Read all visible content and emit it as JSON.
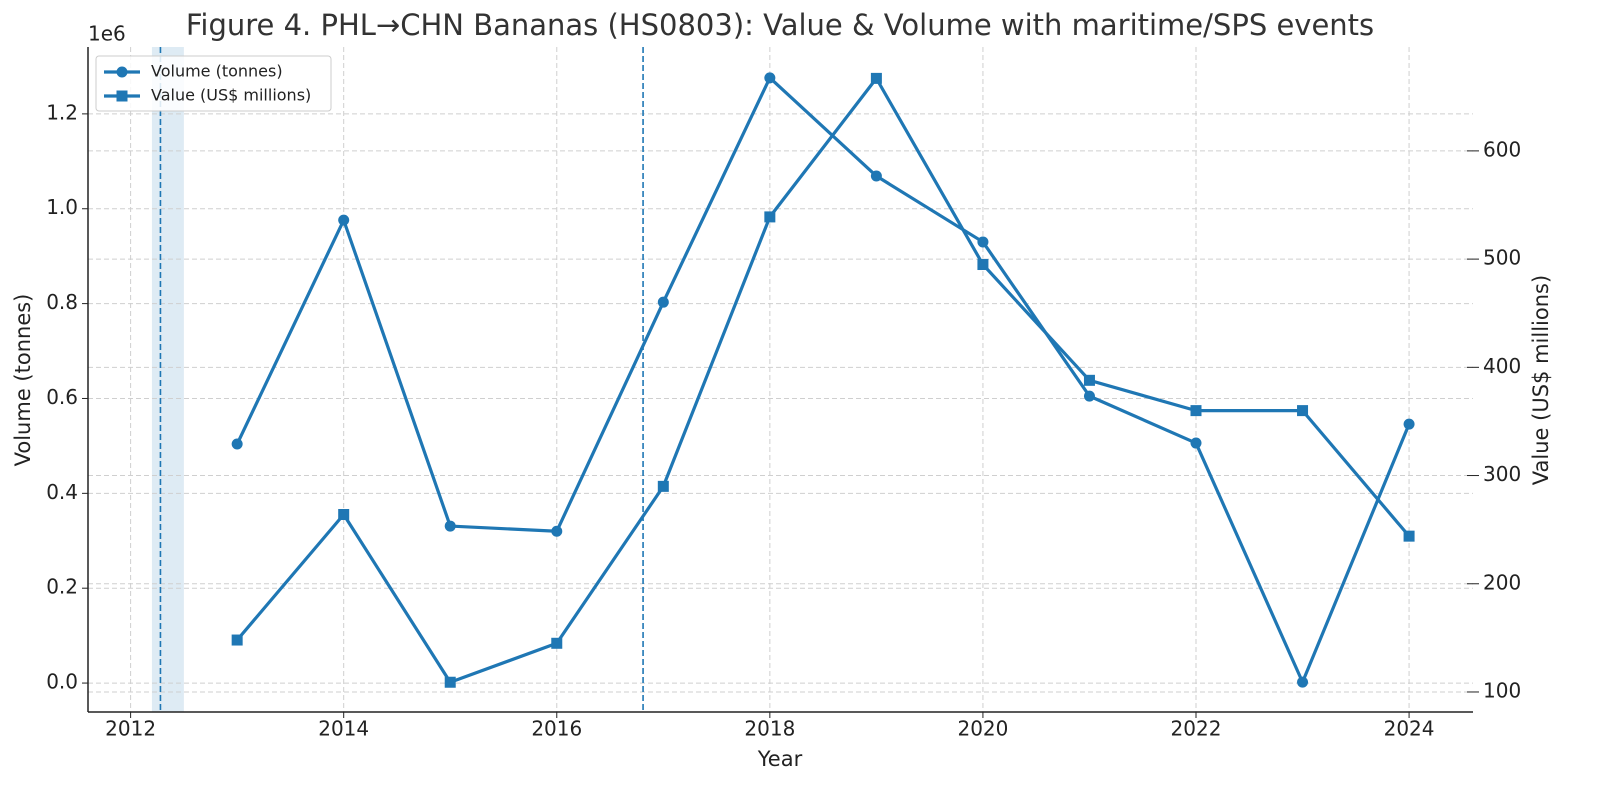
{
  "chart_data": {
    "type": "line",
    "title": "Figure 4. PHL→CHN Bananas (HS0803): Value & Volume with maritime/SPS events",
    "x_label": "Year",
    "y_label": "Volume (tonnes)",
    "y2_label": "Value (US$ millions)",
    "y_offset_label": "1e6",
    "x": [
      2013,
      2014,
      2015,
      2016,
      2017,
      2018,
      2019,
      2020,
      2021,
      2022,
      2023,
      2024
    ],
    "series": [
      {
        "name": "Volume (tonnes)",
        "color": "#1f77b4",
        "marker": "circle",
        "values": [
          504000,
          976000,
          331000,
          320000,
          803000,
          1276000,
          1069000,
          930000,
          605000,
          506000,
          2000,
          546000
        ]
      },
      {
        "name": "Value (US$ millions)",
        "color": "#1f77b4",
        "marker": "square",
        "axis": "y2",
        "values": [
          148,
          264,
          109,
          145,
          290,
          539,
          667,
          495,
          388,
          360,
          360,
          244
        ]
      }
    ],
    "xlim": [
      2011.6,
      2024.6
    ],
    "xticks": [
      2012,
      2014,
      2016,
      2018,
      2020,
      2022,
      2024
    ],
    "ylim": [
      -61000,
      1341000
    ],
    "yticks": [
      {
        "value": 0,
        "label": "0.0"
      },
      {
        "value": 200000,
        "label": "0.2"
      },
      {
        "value": 400000,
        "label": "0.4"
      },
      {
        "value": 600000,
        "label": "0.6"
      },
      {
        "value": 800000,
        "label": "0.8"
      },
      {
        "value": 1000000,
        "label": "1.0"
      },
      {
        "value": 1200000,
        "label": "1.2"
      }
    ],
    "y2lim": [
      81.5,
      696
    ],
    "y2ticks": [
      100,
      200,
      300,
      400,
      500,
      600
    ],
    "event_spans": [
      [
        2012.2,
        2012.5
      ]
    ],
    "event_lines": [
      2012.28,
      2016.81
    ],
    "event_color": "#1f77b4",
    "grid": true,
    "legend": "upper left"
  }
}
